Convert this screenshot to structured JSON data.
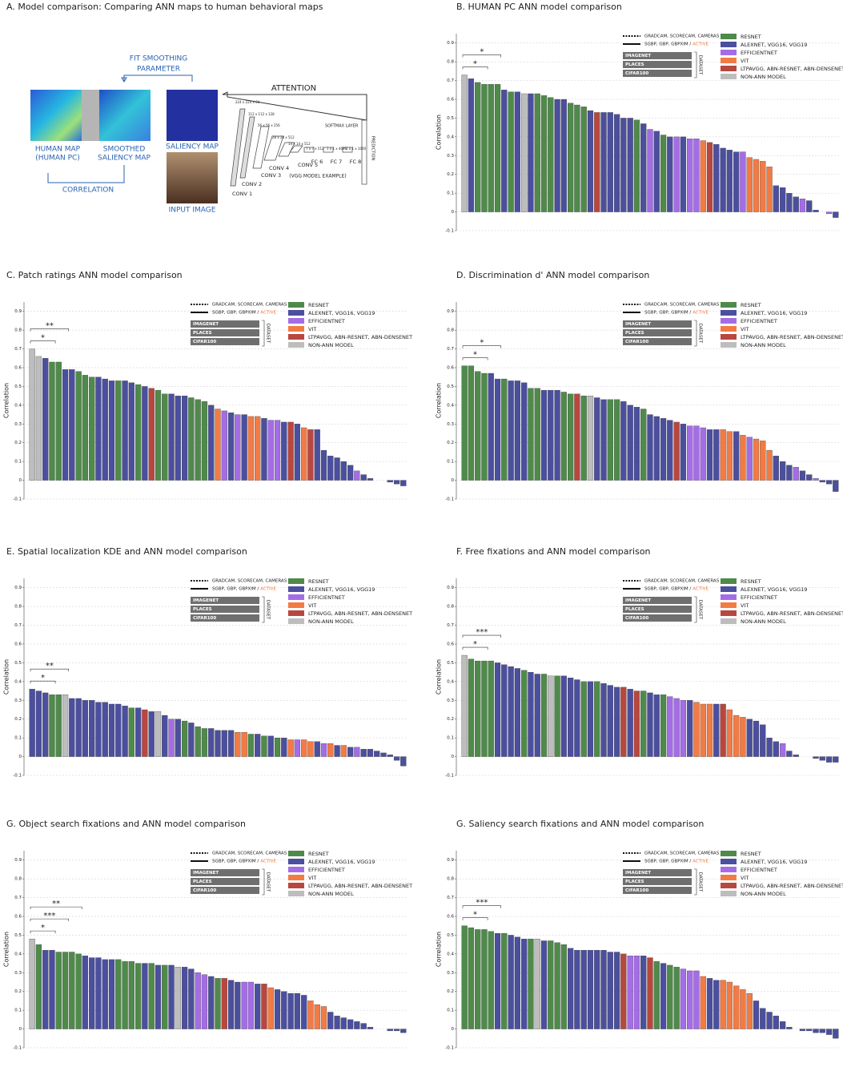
{
  "panel_a": {
    "title": "A. Model comparison: Comparing ANN maps to human behavioral maps",
    "fit": [
      "FIT SMOOTHING",
      "PARAMETER"
    ],
    "attention": "ATTENTION",
    "human_map": [
      "HUMAN MAP",
      "(HUMAN PC)"
    ],
    "smoothed": [
      "SMOOTHED",
      "SALIENCY MAP"
    ],
    "correlation": "CORRELATION",
    "saliency_map": "SALIENCY MAP",
    "input_image": "INPUT IMAGE",
    "convs": [
      "CONV 1",
      "CONV 2",
      "CONV 3",
      "CONV 4",
      "CONV 5"
    ],
    "fcs": [
      "FC 6",
      "FC 7",
      "FC 8"
    ],
    "dims": [
      "224 x 224 x 64",
      "112 x 112 x 128",
      "56 x 56 x 256",
      "28 x 28 x 512",
      "14 x 14 x 512",
      "7 x 7 x 512",
      "1 x 1 x 4096",
      "1 x 1 x 1000"
    ],
    "softmax": "SOFTMAX LAYER",
    "prediction": "PREDICTION",
    "vgg": "(VGG MODEL EXAMPLE)"
  },
  "legend": {
    "groups": [
      {
        "name": "RESNET",
        "color": "#4f8a4b"
      },
      {
        "name": "ALEXNET, VGG16, VGG19",
        "color": "#4b4f9e"
      },
      {
        "name": "EFFICIENTNET",
        "color": "#a46de6"
      },
      {
        "name": "VIT",
        "color": "#f27b45"
      },
      {
        "name": "LTPAVGG, ABN-RESNET, ABN-DENSENET",
        "color": "#b8473f"
      },
      {
        "name": "NON-ANN MODEL",
        "color": "#bdbdbd"
      }
    ],
    "methods": [
      "GRADCAM, SCORECAM, CAMERAS",
      "SGBP, GBP, GBPXIM /"
    ],
    "active": "ACTIVE",
    "datasets": [
      "IMAGENET",
      "PLACES",
      "CIFAR100"
    ],
    "dataset_label": "DATASET"
  },
  "chart_data": [
    {
      "type": "bar",
      "title": "B. HUMAN PC ANN model comparison",
      "ylabel": "Correlation",
      "ylim": [
        -0.1,
        0.95
      ],
      "yticks": [
        -0.1,
        0,
        0.1,
        0.2,
        0.3,
        0.4,
        0.5,
        0.6,
        0.7,
        0.8,
        0.9
      ],
      "grid": true,
      "significance": [
        "*",
        "*"
      ],
      "values": [
        0.73,
        0.71,
        0.69,
        0.68,
        0.68,
        0.68,
        0.65,
        0.64,
        0.64,
        0.63,
        0.63,
        0.63,
        0.62,
        0.61,
        0.6,
        0.6,
        0.58,
        0.57,
        0.56,
        0.54,
        0.53,
        0.53,
        0.53,
        0.52,
        0.5,
        0.5,
        0.49,
        0.47,
        0.44,
        0.43,
        0.41,
        0.4,
        0.4,
        0.4,
        0.39,
        0.39,
        0.38,
        0.37,
        0.36,
        0.34,
        0.33,
        0.32,
        0.32,
        0.29,
        0.28,
        0.27,
        0.24,
        0.14,
        0.13,
        0.1,
        0.08,
        0.07,
        0.06,
        0.01,
        0.0,
        -0.01,
        -0.03
      ],
      "groups": [
        5,
        1,
        0,
        0,
        0,
        0,
        1,
        0,
        1,
        5,
        1,
        0,
        0,
        0,
        1,
        1,
        0,
        0,
        0,
        1,
        4,
        1,
        1,
        1,
        1,
        1,
        0,
        1,
        2,
        1,
        0,
        1,
        2,
        1,
        2,
        2,
        3,
        4,
        1,
        1,
        1,
        1,
        2,
        3,
        3,
        3,
        3,
        1,
        1,
        1,
        1,
        2,
        1,
        1,
        1,
        2,
        1
      ]
    },
    {
      "type": "bar",
      "title": "C. Patch ratings ANN model comparison",
      "ylabel": "Correlation",
      "ylim": [
        -0.1,
        0.95
      ],
      "yticks": [
        -0.1,
        0,
        0.1,
        0.2,
        0.3,
        0.4,
        0.5,
        0.6,
        0.7,
        0.8,
        0.9
      ],
      "grid": true,
      "significance": [
        "**",
        "*"
      ],
      "values": [
        0.7,
        0.66,
        0.65,
        0.63,
        0.63,
        0.59,
        0.59,
        0.58,
        0.56,
        0.55,
        0.55,
        0.54,
        0.53,
        0.53,
        0.53,
        0.52,
        0.51,
        0.5,
        0.49,
        0.48,
        0.46,
        0.46,
        0.45,
        0.45,
        0.44,
        0.43,
        0.42,
        0.4,
        0.38,
        0.37,
        0.36,
        0.35,
        0.35,
        0.34,
        0.34,
        0.33,
        0.32,
        0.32,
        0.31,
        0.31,
        0.3,
        0.28,
        0.27,
        0.27,
        0.16,
        0.13,
        0.12,
        0.1,
        0.08,
        0.05,
        0.03,
        0.01,
        0.0,
        0.0,
        -0.01,
        -0.02,
        -0.03
      ],
      "groups": [
        5,
        5,
        1,
        0,
        0,
        1,
        1,
        0,
        0,
        0,
        1,
        1,
        1,
        0,
        1,
        1,
        0,
        1,
        4,
        0,
        0,
        1,
        1,
        1,
        0,
        0,
        0,
        1,
        3,
        2,
        1,
        2,
        1,
        3,
        3,
        1,
        2,
        2,
        1,
        4,
        1,
        3,
        4,
        1,
        1,
        1,
        1,
        1,
        1,
        2,
        1,
        1,
        1,
        1,
        1,
        1,
        1
      ]
    },
    {
      "type": "bar",
      "title": "D. Discrimination d' ANN model comparison",
      "ylabel": "Correlation",
      "ylim": [
        -0.1,
        0.95
      ],
      "yticks": [
        -0.1,
        0,
        0.1,
        0.2,
        0.3,
        0.4,
        0.5,
        0.6,
        0.7,
        0.8,
        0.9
      ],
      "grid": true,
      "significance": [
        "*",
        "*"
      ],
      "values": [
        0.61,
        0.61,
        0.58,
        0.57,
        0.57,
        0.54,
        0.54,
        0.53,
        0.53,
        0.52,
        0.49,
        0.49,
        0.48,
        0.48,
        0.48,
        0.47,
        0.46,
        0.46,
        0.45,
        0.45,
        0.44,
        0.43,
        0.43,
        0.43,
        0.42,
        0.4,
        0.39,
        0.38,
        0.35,
        0.34,
        0.33,
        0.32,
        0.31,
        0.3,
        0.29,
        0.29,
        0.28,
        0.27,
        0.27,
        0.27,
        0.26,
        0.26,
        0.24,
        0.23,
        0.22,
        0.21,
        0.16,
        0.13,
        0.1,
        0.08,
        0.07,
        0.05,
        0.03,
        0.01,
        -0.01,
        -0.02,
        -0.06
      ],
      "groups": [
        0,
        0,
        0,
        0,
        1,
        1,
        0,
        1,
        1,
        1,
        0,
        0,
        1,
        1,
        1,
        0,
        0,
        4,
        0,
        5,
        1,
        1,
        0,
        0,
        1,
        1,
        1,
        0,
        1,
        1,
        1,
        1,
        4,
        1,
        2,
        2,
        2,
        1,
        1,
        3,
        3,
        1,
        3,
        2,
        3,
        3,
        3,
        1,
        1,
        1,
        2,
        1,
        1,
        2,
        1,
        1,
        1
      ]
    },
    {
      "type": "bar",
      "title": "E. Spatial localization KDE and ANN model comparison",
      "ylabel": "Correlation",
      "ylim": [
        -0.1,
        0.95
      ],
      "yticks": [
        -0.1,
        0,
        0.1,
        0.2,
        0.3,
        0.4,
        0.5,
        0.6,
        0.7,
        0.8,
        0.9
      ],
      "grid": true,
      "significance": [
        "**",
        "*"
      ],
      "values": [
        0.36,
        0.35,
        0.34,
        0.33,
        0.33,
        0.33,
        0.31,
        0.31,
        0.3,
        0.3,
        0.29,
        0.29,
        0.28,
        0.28,
        0.27,
        0.26,
        0.26,
        0.25,
        0.24,
        0.24,
        0.22,
        0.2,
        0.2,
        0.19,
        0.18,
        0.16,
        0.15,
        0.15,
        0.14,
        0.14,
        0.14,
        0.13,
        0.13,
        0.12,
        0.12,
        0.11,
        0.11,
        0.1,
        0.1,
        0.09,
        0.09,
        0.09,
        0.08,
        0.08,
        0.07,
        0.07,
        0.06,
        0.06,
        0.05,
        0.05,
        0.04,
        0.04,
        0.03,
        0.02,
        0.01,
        -0.02,
        -0.05
      ],
      "groups": [
        1,
        1,
        1,
        0,
        0,
        5,
        1,
        1,
        1,
        1,
        1,
        1,
        1,
        1,
        1,
        0,
        1,
        4,
        1,
        5,
        1,
        2,
        1,
        0,
        1,
        0,
        0,
        1,
        1,
        1,
        1,
        3,
        3,
        0,
        1,
        0,
        1,
        0,
        1,
        3,
        2,
        3,
        3,
        1,
        2,
        3,
        1,
        3,
        1,
        2,
        1,
        1,
        1,
        1,
        1,
        1,
        1
      ]
    },
    {
      "type": "bar",
      "title": "F. Free fixations and ANN model comparison",
      "ylabel": "Correlation",
      "ylim": [
        -0.1,
        0.95
      ],
      "yticks": [
        -0.1,
        0,
        0.1,
        0.2,
        0.3,
        0.4,
        0.5,
        0.6,
        0.7,
        0.8,
        0.9
      ],
      "grid": true,
      "significance": [
        "***",
        "*"
      ],
      "values": [
        0.54,
        0.52,
        0.51,
        0.51,
        0.51,
        0.5,
        0.49,
        0.48,
        0.47,
        0.46,
        0.45,
        0.44,
        0.44,
        0.43,
        0.43,
        0.43,
        0.42,
        0.41,
        0.4,
        0.4,
        0.4,
        0.39,
        0.38,
        0.37,
        0.37,
        0.36,
        0.35,
        0.35,
        0.34,
        0.33,
        0.33,
        0.32,
        0.31,
        0.3,
        0.3,
        0.29,
        0.28,
        0.28,
        0.28,
        0.28,
        0.25,
        0.22,
        0.21,
        0.2,
        0.19,
        0.17,
        0.1,
        0.08,
        0.07,
        0.03,
        0.01,
        0.0,
        0.0,
        -0.01,
        -0.02,
        -0.03,
        -0.03
      ],
      "groups": [
        5,
        0,
        0,
        0,
        0,
        1,
        1,
        1,
        1,
        0,
        1,
        1,
        0,
        5,
        0,
        1,
        1,
        1,
        0,
        1,
        0,
        1,
        1,
        1,
        4,
        1,
        4,
        0,
        1,
        1,
        0,
        2,
        2,
        2,
        1,
        3,
        3,
        3,
        1,
        4,
        3,
        3,
        3,
        1,
        1,
        1,
        1,
        1,
        2,
        1,
        1,
        1,
        1,
        1,
        1,
        1,
        1
      ]
    },
    {
      "type": "bar",
      "title": "G. Object search fixations and ANN model comparison",
      "ylabel": "Correlation",
      "ylim": [
        -0.1,
        0.95
      ],
      "yticks": [
        -0.1,
        0,
        0.1,
        0.2,
        0.3,
        0.4,
        0.5,
        0.6,
        0.7,
        0.8,
        0.9
      ],
      "grid": true,
      "significance": [
        "**",
        "***",
        "*"
      ],
      "values": [
        0.48,
        0.45,
        0.42,
        0.42,
        0.41,
        0.41,
        0.41,
        0.4,
        0.39,
        0.38,
        0.38,
        0.37,
        0.37,
        0.37,
        0.36,
        0.36,
        0.35,
        0.35,
        0.35,
        0.34,
        0.34,
        0.34,
        0.33,
        0.33,
        0.32,
        0.3,
        0.29,
        0.28,
        0.27,
        0.27,
        0.26,
        0.25,
        0.25,
        0.25,
        0.24,
        0.24,
        0.22,
        0.21,
        0.2,
        0.19,
        0.19,
        0.18,
        0.15,
        0.13,
        0.12,
        0.09,
        0.07,
        0.06,
        0.05,
        0.04,
        0.03,
        0.01,
        0.0,
        0.0,
        -0.01,
        -0.01,
        -0.02
      ],
      "groups": [
        5,
        0,
        1,
        1,
        0,
        0,
        0,
        0,
        1,
        1,
        1,
        1,
        1,
        0,
        0,
        0,
        0,
        1,
        0,
        1,
        0,
        1,
        5,
        1,
        1,
        2,
        2,
        1,
        0,
        4,
        1,
        1,
        2,
        2,
        1,
        4,
        3,
        1,
        1,
        1,
        1,
        1,
        3,
        3,
        3,
        1,
        1,
        1,
        1,
        1,
        1,
        1,
        1,
        1,
        1,
        1,
        1
      ]
    },
    {
      "type": "bar",
      "title": "G. Saliency search fixations and ANN model comparison",
      "ylabel": "Correlation",
      "ylim": [
        -0.1,
        0.95
      ],
      "yticks": [
        -0.1,
        0,
        0.1,
        0.2,
        0.3,
        0.4,
        0.5,
        0.6,
        0.7,
        0.8,
        0.9
      ],
      "grid": true,
      "significance": [
        "***",
        "*"
      ],
      "values": [
        0.55,
        0.54,
        0.53,
        0.53,
        0.52,
        0.51,
        0.51,
        0.5,
        0.49,
        0.48,
        0.48,
        0.48,
        0.47,
        0.47,
        0.46,
        0.45,
        0.43,
        0.42,
        0.42,
        0.42,
        0.42,
        0.42,
        0.41,
        0.41,
        0.4,
        0.39,
        0.39,
        0.39,
        0.38,
        0.36,
        0.35,
        0.34,
        0.33,
        0.32,
        0.31,
        0.31,
        0.28,
        0.27,
        0.26,
        0.26,
        0.25,
        0.23,
        0.21,
        0.19,
        0.15,
        0.11,
        0.09,
        0.07,
        0.04,
        0.01,
        0.0,
        -0.01,
        -0.01,
        -0.02,
        -0.02,
        -0.03,
        -0.05
      ],
      "groups": [
        0,
        0,
        0,
        0,
        0,
        1,
        0,
        1,
        1,
        1,
        0,
        5,
        1,
        0,
        0,
        0,
        1,
        1,
        1,
        1,
        1,
        1,
        1,
        1,
        4,
        2,
        2,
        1,
        4,
        0,
        1,
        0,
        0,
        2,
        2,
        2,
        3,
        1,
        1,
        3,
        3,
        3,
        3,
        3,
        1,
        1,
        1,
        1,
        1,
        1,
        1,
        1,
        1,
        1,
        1,
        1,
        1
      ]
    }
  ]
}
